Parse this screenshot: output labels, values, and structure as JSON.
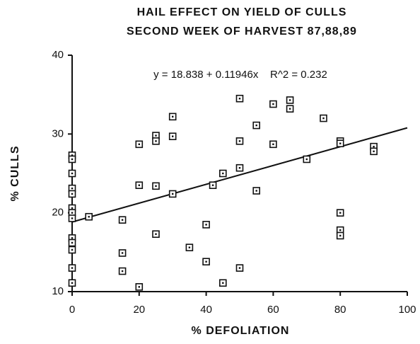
{
  "chart_data": {
    "type": "scatter",
    "title": "HAIL EFFECT ON YIELD OF CULLS",
    "subtitle": "SECOND WEEK OF HARVEST 87,88,89",
    "x_label": "% DEFOLIATION",
    "y_label": "% CULLS",
    "annotation": "y = 18.838 + 0.11946x    R^2 = 0.232",
    "trendline": {
      "intercept": 18.838,
      "slope": 0.11946
    },
    "xlim": [
      0,
      100
    ],
    "xticks": [
      0,
      20,
      40,
      60,
      80,
      100
    ],
    "ylim": [
      10,
      40
    ],
    "yticks": [
      10,
      20,
      30,
      40
    ],
    "series": [
      {
        "color": "#111111",
        "x": [
          0,
          0,
          0,
          0,
          0,
          0,
          0,
          0,
          0,
          0,
          0,
          0,
          0,
          5,
          15,
          15,
          15,
          20,
          20,
          20,
          25,
          25,
          25,
          25,
          30,
          30,
          30,
          35,
          40,
          40,
          42,
          45,
          45,
          50,
          50,
          50,
          50,
          55,
          55,
          60,
          60,
          65,
          65,
          70,
          75,
          80,
          80,
          80,
          80,
          80,
          90,
          90
        ],
        "values": [
          27.3,
          26.8,
          25.0,
          23.1,
          22.4,
          20.6,
          20.0,
          19.3,
          16.8,
          16.2,
          15.3,
          13.0,
          11.1,
          19.5,
          19.1,
          14.9,
          12.6,
          28.7,
          23.5,
          10.6,
          29.8,
          29.1,
          23.4,
          17.3,
          32.2,
          29.7,
          22.4,
          15.6,
          18.5,
          13.8,
          23.5,
          25.0,
          11.1,
          34.5,
          29.1,
          25.7,
          13.0,
          31.1,
          22.8,
          33.8,
          28.7,
          34.3,
          33.2,
          26.8,
          32.0,
          29.1,
          28.8,
          20.0,
          17.8,
          17.1,
          28.4,
          27.8
        ]
      }
    ]
  }
}
